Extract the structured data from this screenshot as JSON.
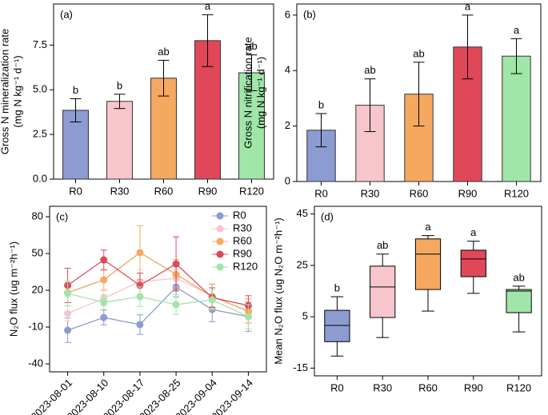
{
  "chart_data": [
    {
      "type": "bar",
      "label": "(a)",
      "ylabel": [
        "Gross N mineralization rate",
        "(mg N kg⁻¹ d⁻¹)"
      ],
      "categories": [
        "R0",
        "R30",
        "R60",
        "R90",
        "R120"
      ],
      "values": [
        3.85,
        4.35,
        5.65,
        7.75,
        5.95
      ],
      "errors": [
        0.65,
        0.4,
        1.0,
        1.45,
        1.0
      ],
      "letters": [
        "b",
        "b",
        "ab",
        "a",
        "ab"
      ],
      "colors": [
        "#8c9bd1",
        "#f7c6cc",
        "#f5a860",
        "#e0485a",
        "#9fe6a8"
      ],
      "ylim": [
        0,
        9.8
      ],
      "yticks": [
        {
          "value": 0,
          "label": "0.0"
        },
        {
          "value": 2.5,
          "label": "2.5"
        },
        {
          "value": 5,
          "label": "5.0"
        },
        {
          "value": 7.5,
          "label": "7.5"
        }
      ]
    },
    {
      "type": "bar",
      "label": "(b)",
      "ylabel": [
        "Gross N nitrification rate",
        "(mg N kg⁻¹ d⁻¹)"
      ],
      "categories": [
        "R0",
        "R30",
        "R60",
        "R90",
        "R120"
      ],
      "values": [
        1.85,
        2.75,
        3.15,
        4.85,
        4.52
      ],
      "errors": [
        0.6,
        0.95,
        1.15,
        1.15,
        0.63
      ],
      "letters": [
        "b",
        "ab",
        "ab",
        "a",
        "a"
      ],
      "colors": [
        "#8c9bd1",
        "#f7c6cc",
        "#f5a860",
        "#e0485a",
        "#9fe6a8"
      ],
      "ylim": [
        0,
        6.4
      ],
      "yticks": [
        0,
        2,
        4,
        6
      ]
    },
    {
      "type": "line",
      "label": "(c)",
      "ylabel": [
        "N₂O flux (ug m⁻²h⁻¹)"
      ],
      "categories": [
        "2023-08-01",
        "2023-08-10",
        "2023-08-17",
        "2023-08-25",
        "2023-09-04",
        "2023-09-14"
      ],
      "series": [
        {
          "name": "R0",
          "color": "#8c9bd1",
          "values": [
            -12.6,
            -2.2,
            -8,
            22.6,
            4.3,
            -1.5
          ],
          "errors": [
            10,
            6,
            8,
            8,
            10,
            12
          ]
        },
        {
          "name": "R30",
          "color": "#f7c6cc",
          "values": [
            1.1,
            13.5,
            27,
            29.8,
            15.4,
            2.4
          ],
          "errors": [
            6,
            6,
            10,
            7,
            10,
            8
          ]
        },
        {
          "name": "R60",
          "color": "#f5a860",
          "values": [
            18,
            28.5,
            50.7,
            33,
            14.8,
            3
          ],
          "errors": [
            8,
            8,
            22,
            12,
            10,
            10
          ]
        },
        {
          "name": "R90",
          "color": "#e0485a",
          "values": [
            24,
            44.8,
            24,
            41.5,
            14,
            7.6
          ],
          "errors": [
            14,
            8,
            10,
            22,
            8,
            8
          ]
        },
        {
          "name": "R120",
          "color": "#9fe6a8",
          "values": [
            17.4,
            10.2,
            14.8,
            8.3,
            12.2,
            -1.5
          ],
          "errors": [
            10,
            6,
            8,
            8,
            8,
            10
          ]
        }
      ],
      "ylim": [
        -46.5,
        88.5
      ],
      "yticks": [
        -40,
        -10,
        20,
        50,
        80
      ]
    },
    {
      "type": "box",
      "label": "(d)",
      "ylabel": [
        "Mean N₂O flux (ug N₂O m⁻²h⁻¹)"
      ],
      "categories": [
        "R0",
        "R30",
        "R60",
        "R90",
        "R120"
      ],
      "min": [
        -10.3,
        -3.1,
        7.2,
        14.1,
        -0.9
      ],
      "q1": [
        -4.7,
        4.7,
        15.6,
        20.6,
        6.6
      ],
      "median": [
        1.6,
        16.6,
        29.4,
        27.5,
        15
      ],
      "q3": [
        7.5,
        24.7,
        35.3,
        30.9,
        15.6
      ],
      "max": [
        12.8,
        29.4,
        36.6,
        34.4,
        16.9
      ],
      "letters": [
        "b",
        "ab",
        "a",
        "a",
        "ab"
      ],
      "colors": [
        "#8c9bd1",
        "#f7c6cc",
        "#f5a860",
        "#e0485a",
        "#9fe6a8"
      ],
      "ylim": [
        -18,
        48
      ],
      "yticks": [
        -15,
        5,
        25,
        45
      ]
    }
  ]
}
